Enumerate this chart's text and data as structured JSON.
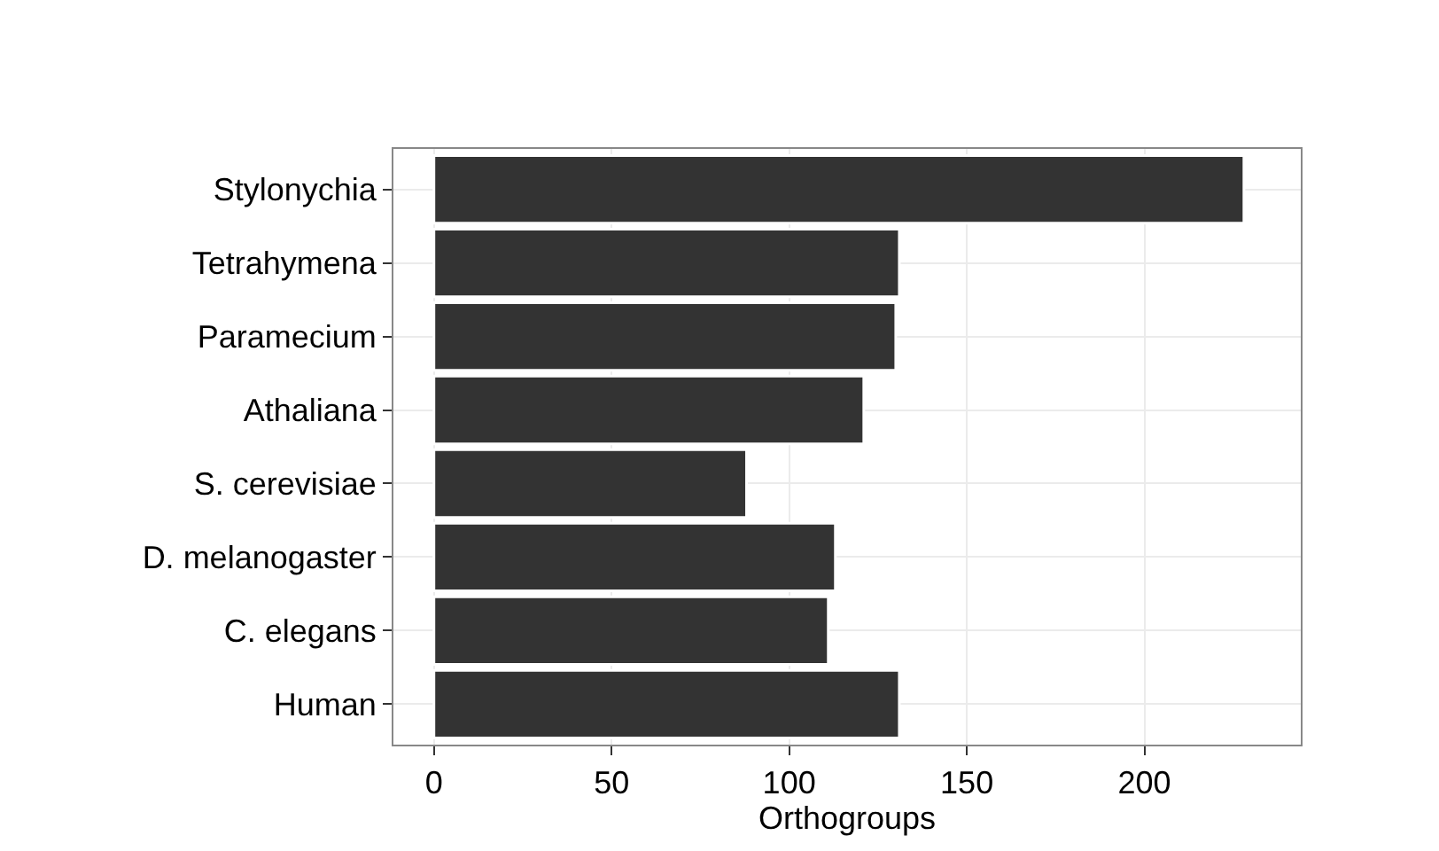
{
  "chart_data": {
    "type": "bar",
    "orientation": "horizontal",
    "xlabel": "Orthogroups",
    "categories": [
      "Stylonychia",
      "Tetrahymena",
      "Paramecium",
      "Athaliana",
      "S. cerevisiae",
      "D. melanogaster",
      "C. elegans",
      "Human"
    ],
    "values": [
      228,
      131,
      130,
      121,
      88,
      113,
      111,
      131
    ],
    "color": "#333333",
    "xlim": [
      -11.4,
      244
    ],
    "xticks": [
      0,
      50,
      100,
      150,
      200
    ],
    "grid": true,
    "legend": false
  }
}
